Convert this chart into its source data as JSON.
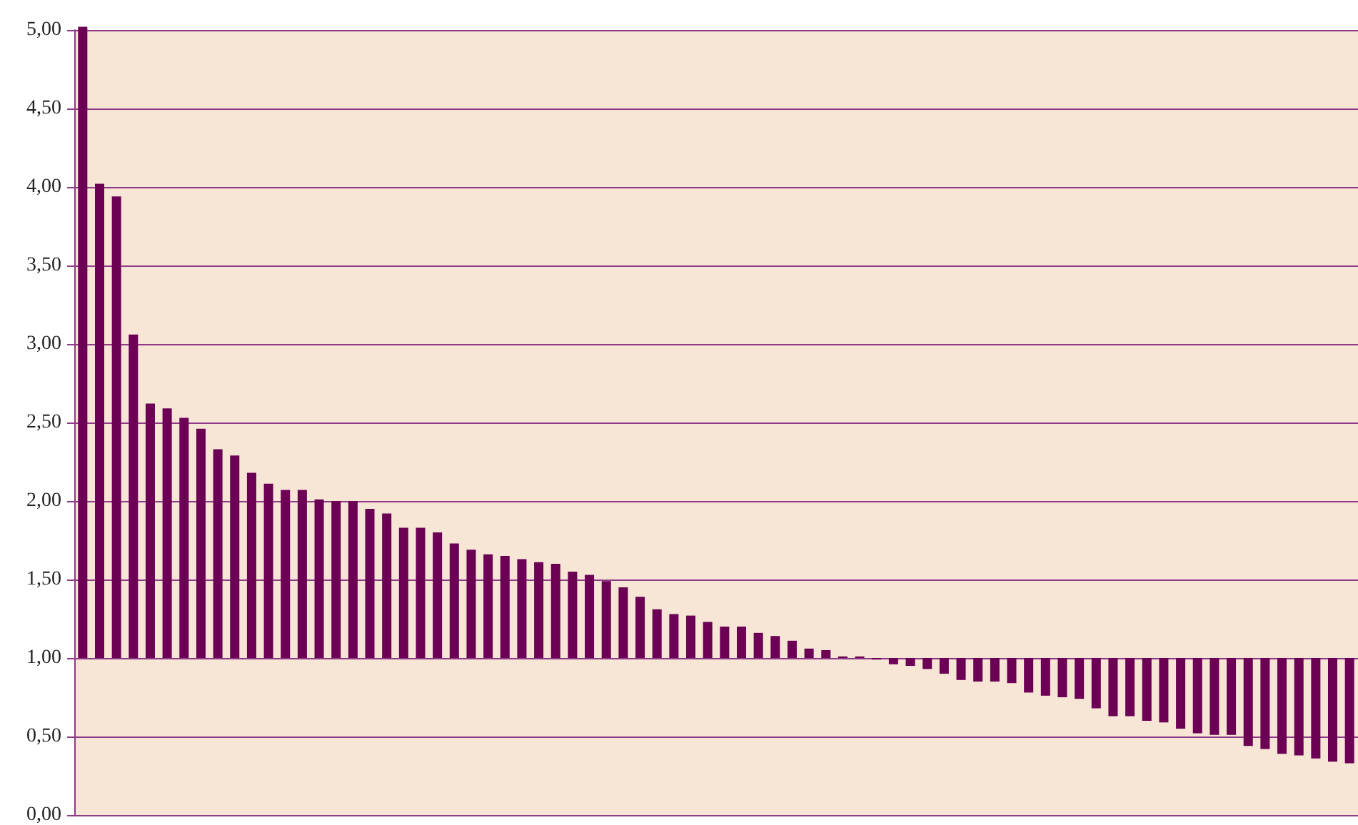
{
  "chart_data": {
    "type": "bar",
    "categories": [
      null,
      null,
      null,
      null,
      null,
      null,
      null,
      null,
      null,
      null,
      null,
      null,
      null,
      null,
      null,
      null,
      null,
      null,
      null,
      null,
      null,
      null,
      null,
      null,
      null,
      null,
      null,
      null,
      null,
      null,
      null,
      null,
      null,
      null,
      null,
      null,
      null,
      null,
      null,
      null,
      null,
      null,
      null,
      null,
      null,
      null,
      null,
      null,
      null,
      null,
      null,
      null,
      null,
      null,
      null,
      null,
      null,
      null,
      null,
      null,
      null,
      null,
      null,
      null,
      null,
      null,
      null,
      null,
      null,
      null,
      null,
      null,
      null,
      null,
      null,
      null
    ],
    "base": [
      1,
      1,
      1,
      1,
      1,
      1,
      1,
      1,
      1,
      1,
      1,
      1,
      1,
      1,
      1,
      1,
      1,
      1,
      1,
      1,
      1,
      1,
      1,
      1,
      1,
      1,
      1,
      1,
      1,
      1,
      1,
      1,
      1,
      1,
      1,
      1,
      1,
      1,
      1,
      1,
      1,
      1,
      1,
      1,
      1,
      1,
      1,
      1,
      1,
      1,
      1,
      1,
      1,
      1,
      1,
      1,
      1,
      1,
      1,
      1,
      1,
      1,
      1,
      1,
      1,
      1,
      1,
      1,
      1,
      1,
      1,
      1,
      1,
      1,
      1,
      1
    ],
    "values": [
      4.02,
      3.02,
      2.94,
      2.06,
      1.62,
      1.59,
      1.53,
      1.46,
      1.33,
      1.29,
      1.18,
      1.11,
      1.07,
      1.07,
      1.01,
      1.0,
      1.0,
      0.95,
      0.92,
      0.83,
      0.83,
      0.8,
      0.73,
      0.69,
      0.66,
      0.65,
      0.63,
      0.61,
      0.6,
      0.55,
      0.53,
      0.49,
      0.45,
      0.39,
      0.31,
      0.28,
      0.27,
      0.23,
      0.2,
      0.2,
      0.16,
      0.14,
      0.11,
      0.06,
      0.05,
      0.01,
      0.01,
      -0.01,
      -0.04,
      -0.05,
      -0.07,
      -0.1,
      -0.14,
      -0.15,
      -0.15,
      -0.16,
      -0.22,
      -0.24,
      -0.25,
      -0.26,
      -0.32,
      -0.37,
      -0.37,
      -0.4,
      -0.41,
      -0.45,
      -0.48,
      -0.49,
      -0.49,
      -0.56,
      -0.58,
      -0.61,
      -0.62,
      -0.64,
      -0.66,
      -0.67
    ],
    "color": "#6b0055",
    "ylim": [
      0,
      5
    ],
    "yticks": [
      {
        "value": 0,
        "label": "0,00"
      },
      {
        "value": 0.5,
        "label": "0,50"
      },
      {
        "value": 1,
        "label": "1,00"
      },
      {
        "value": 1.5,
        "label": "1,50"
      },
      {
        "value": 2,
        "label": "2,00"
      },
      {
        "value": 2.5,
        "label": "2,50"
      },
      {
        "value": 3,
        "label": "3,00"
      },
      {
        "value": 3.5,
        "label": "3,50"
      },
      {
        "value": 4,
        "label": "4,00"
      },
      {
        "value": 4.5,
        "label": "4,50"
      },
      {
        "value": 5,
        "label": "5,00"
      }
    ],
    "grid": "y",
    "tick_labels": "y"
  }
}
